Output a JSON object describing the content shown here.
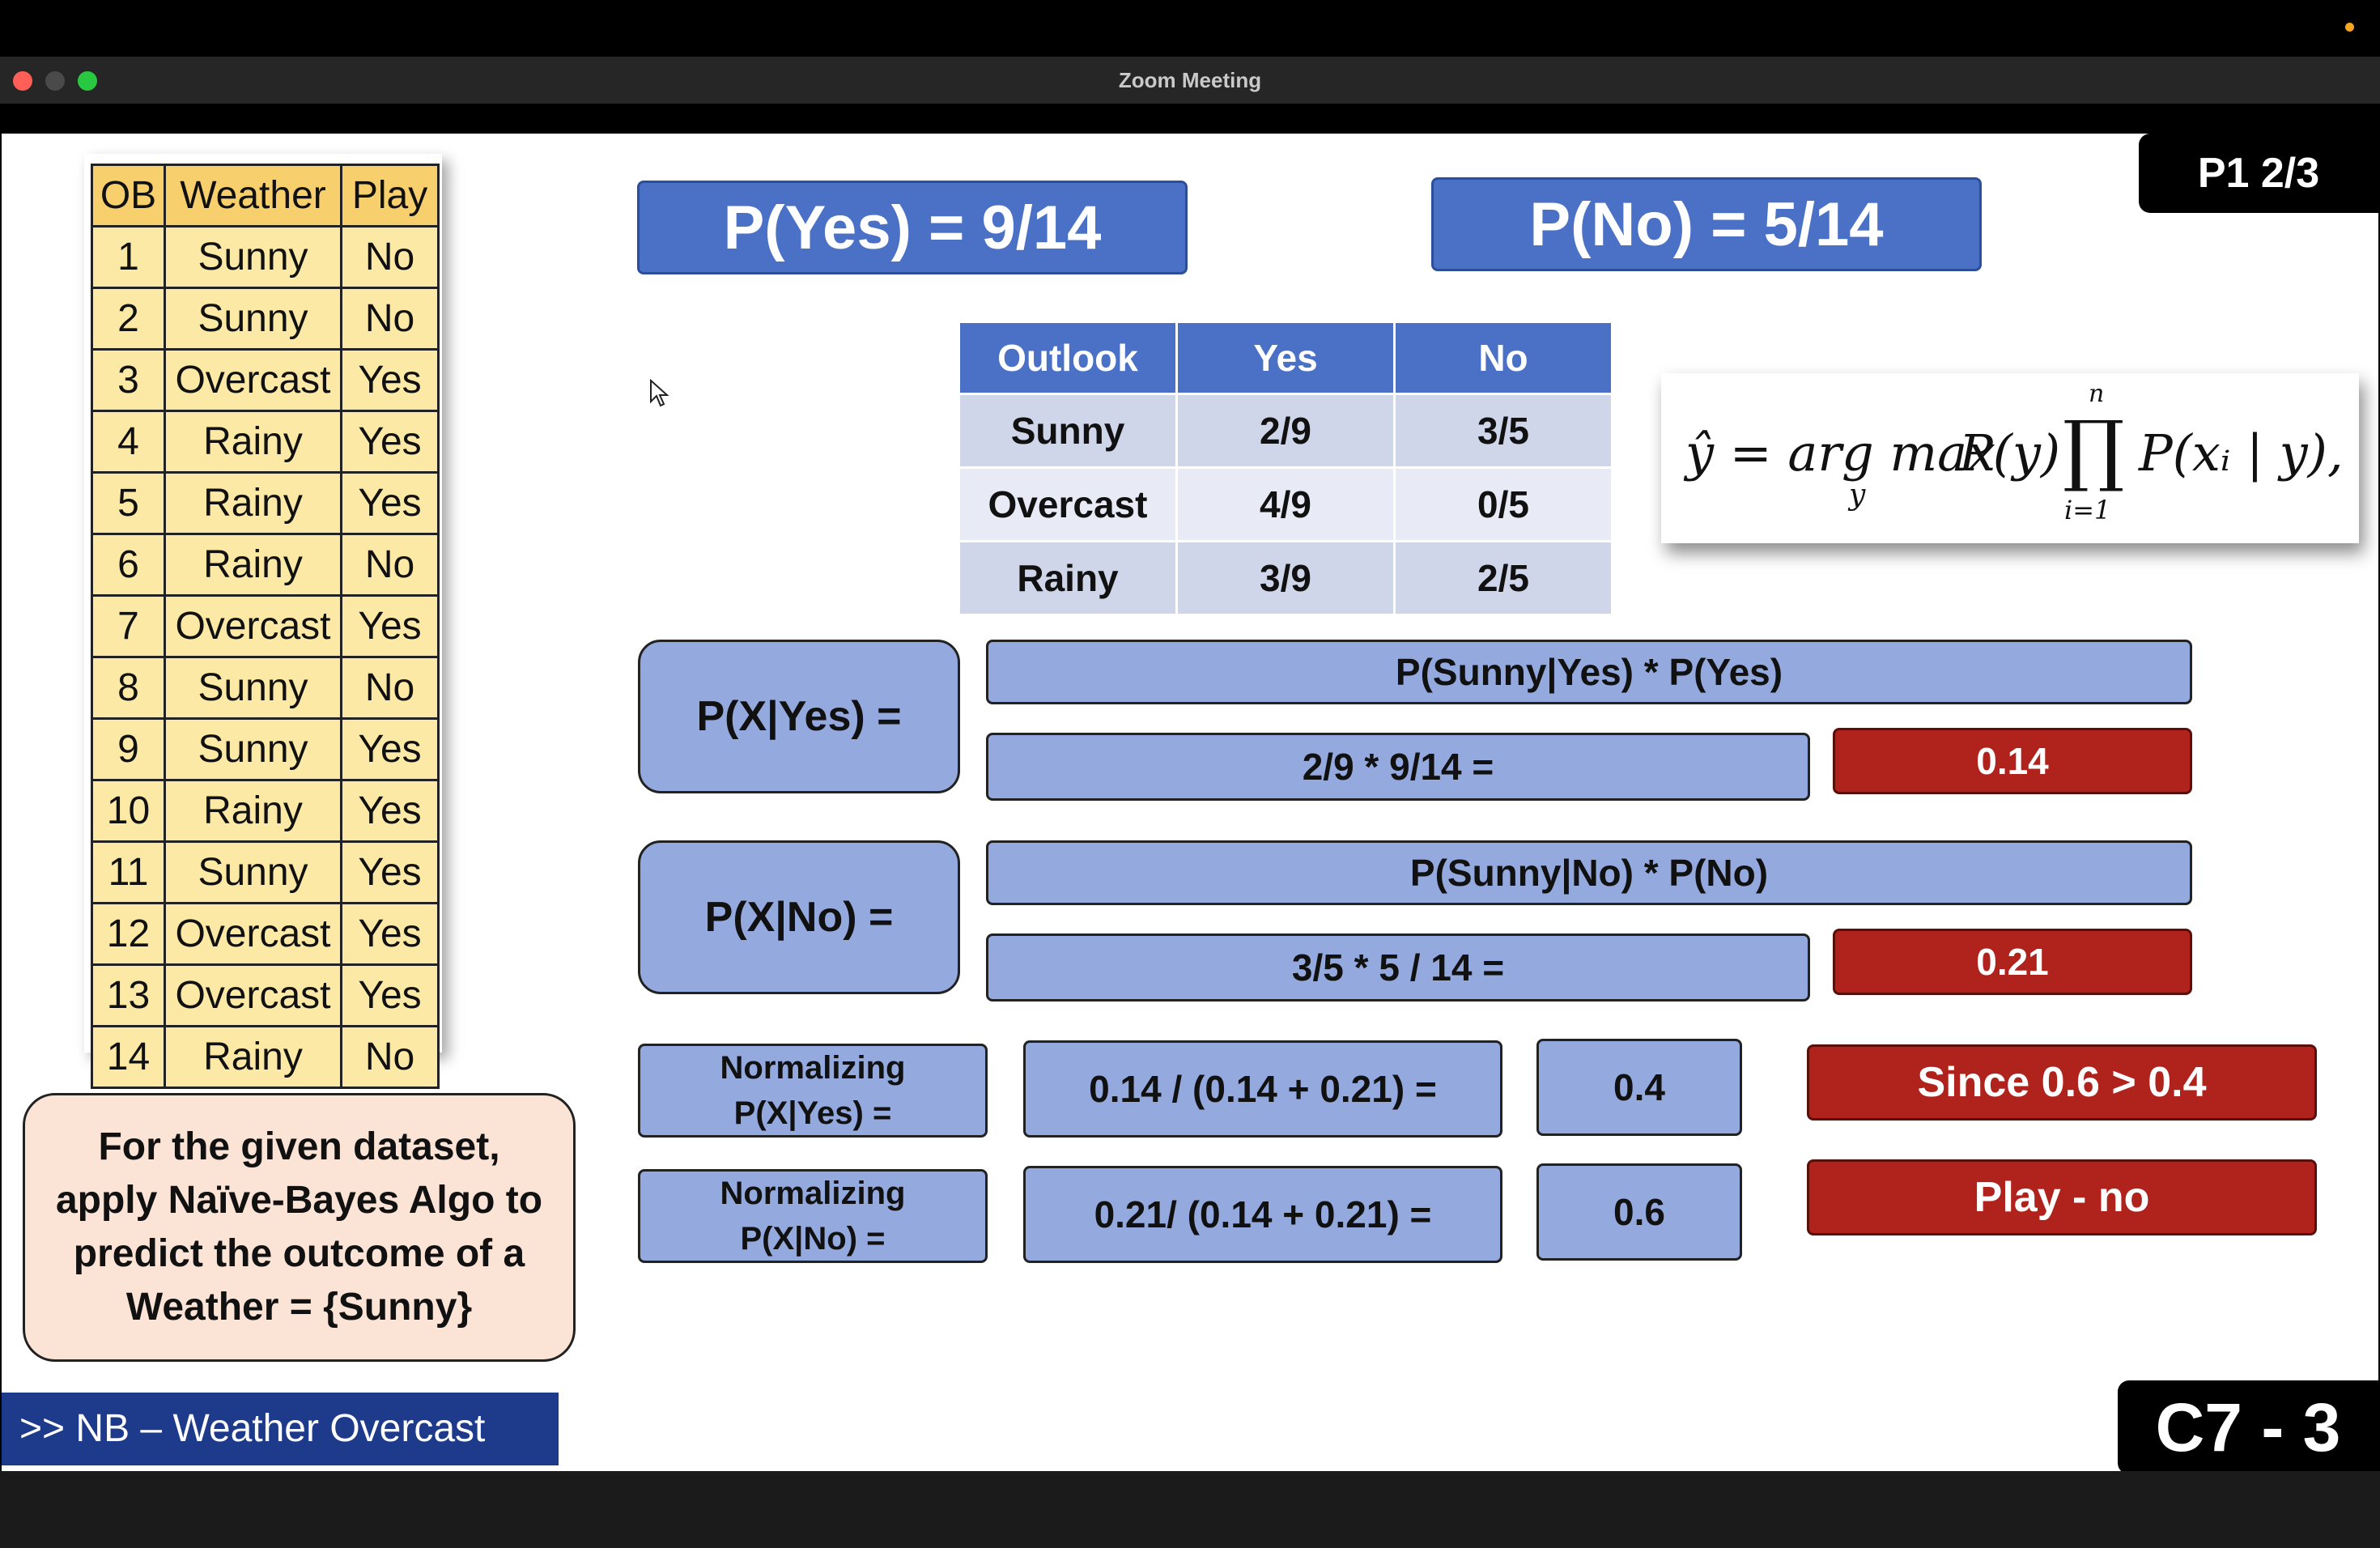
{
  "window": {
    "title": "Zoom Meeting"
  },
  "slide": {
    "page_label": "P1 2/3",
    "chapter_label": "C7 - 3",
    "footer_text": ">> NB – Weather Overcast",
    "prior_yes": "P(Yes) = 9/14",
    "prior_no": "P(No) = 5/14",
    "dataset": {
      "headers": [
        "OB",
        "Weather",
        "Play"
      ],
      "rows": [
        [
          "1",
          "Sunny",
          "No"
        ],
        [
          "2",
          "Sunny",
          "No"
        ],
        [
          "3",
          "Overcast",
          "Yes"
        ],
        [
          "4",
          "Rainy",
          "Yes"
        ],
        [
          "5",
          "Rainy",
          "Yes"
        ],
        [
          "6",
          "Rainy",
          "No"
        ],
        [
          "7",
          "Overcast",
          "Yes"
        ],
        [
          "8",
          "Sunny",
          "No"
        ],
        [
          "9",
          "Sunny",
          "Yes"
        ],
        [
          "10",
          "Rainy",
          "Yes"
        ],
        [
          "11",
          "Sunny",
          "Yes"
        ],
        [
          "12",
          "Overcast",
          "Yes"
        ],
        [
          "13",
          "Overcast",
          "Yes"
        ],
        [
          "14",
          "Rainy",
          "No"
        ]
      ]
    },
    "likelihood_table": {
      "headers": [
        "Outlook",
        "Yes",
        "No"
      ],
      "rows": [
        [
          "Sunny",
          "2/9",
          "3/5"
        ],
        [
          "Overcast",
          "4/9",
          "0/5"
        ],
        [
          "Rainy",
          "3/9",
          "2/5"
        ]
      ]
    },
    "formula": "ŷ = arg max P(y) ∏ P(xᵢ | y),",
    "formula_parts": {
      "lhs": "ŷ = arg max",
      "sub_y": "y",
      "py": "P(y)",
      "prod": "∏",
      "n": "n",
      "i1": "i=1",
      "rhs": "P(xᵢ | y),"
    },
    "pxyes": {
      "label": "P(X|Yes) =",
      "expr": "P(Sunny|Yes)  * P(Yes)",
      "calc": "2/9 * 9/14 =",
      "result": "0.14"
    },
    "pxno": {
      "label": "P(X|No) =",
      "expr": "P(Sunny|No) * P(No)",
      "calc": "3/5 * 5 / 14 =",
      "result": "0.21"
    },
    "norm_yes": {
      "label": "Normalizing\nP(X|Yes) =",
      "calc": "0.14 / (0.14 + 0.21) =",
      "result": "0.4"
    },
    "norm_no": {
      "label": "Normalizing\nP(X|No) =",
      "calc": "0.21/ (0.14 + 0.21) =",
      "result": "0.6"
    },
    "conclusion_1": "Since 0.6 > 0.4",
    "conclusion_2": "Play - no",
    "prompt": "For the given dataset,\napply Naïve-Bayes Algo to\npredict the outcome of a\nWeather = {Sunny}"
  },
  "colors": {
    "accent_blue": "#4a71c6",
    "light_blue": "#94a9dd",
    "red": "#b0231c",
    "table_yellow": "#fde9a6"
  }
}
